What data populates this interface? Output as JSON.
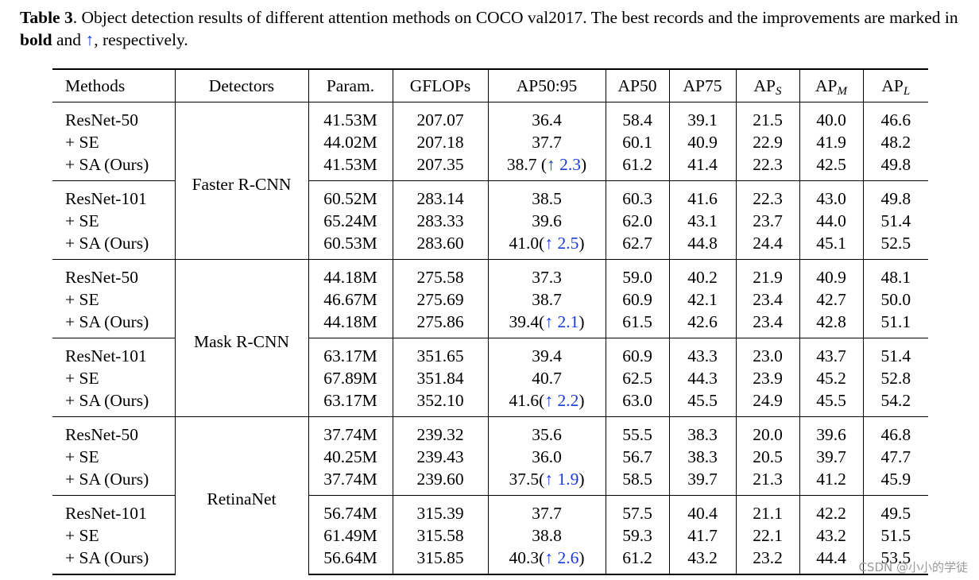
{
  "caption": {
    "label": "Table 3",
    "text_1": ". Object detection results of different attention methods on COCO val2017. The best records and the improvements are marked in ",
    "bold_word": "bold",
    "text_2": " and ",
    "arrow": "↑",
    "text_3": ", respectively."
  },
  "headers": {
    "methods": "Methods",
    "detectors": "Detectors",
    "param": "Param.",
    "gflops": "GFLOPs",
    "ap50_95": "AP50:95",
    "ap50": "AP50",
    "ap75": "AP75",
    "aps_base": "AP",
    "aps_sub": "S",
    "apm_base": "AP",
    "apm_sub": "M",
    "apl_base": "AP",
    "apl_sub": "L"
  },
  "detectors": [
    "Faster R-CNN",
    "Mask R-CNN",
    "RetinaNet"
  ],
  "rows": [
    {
      "method": "ResNet-50",
      "param": "41.53M",
      "gflops": "207.07",
      "ap": "36.4",
      "imp": "",
      "ap50": "58.4",
      "ap75": "39.1",
      "aps": "21.5",
      "apm": "40.0",
      "apl": "46.6"
    },
    {
      "method": "+ SE",
      "param": "44.02M",
      "gflops": "207.18",
      "ap": "37.7",
      "imp": "",
      "ap50": "60.1",
      "ap75": "40.9",
      "aps": "22.9",
      "apm": "41.9",
      "apl": "48.2"
    },
    {
      "method": "+ SA (Ours)",
      "param": "41.53M",
      "gflops": "207.35",
      "ap": "38.7",
      "imp": " (↑ 2.3)",
      "ap50": "61.2",
      "ap75": "41.4",
      "aps": "22.3",
      "apm": "42.5",
      "apl": "49.8"
    },
    {
      "method": "ResNet-101",
      "param": "60.52M",
      "gflops": "283.14",
      "ap": "38.5",
      "imp": "",
      "ap50": "60.3",
      "ap75": "41.6",
      "aps": "22.3",
      "apm": "43.0",
      "apl": "49.8"
    },
    {
      "method": "+ SE",
      "param": "65.24M",
      "gflops": "283.33",
      "ap": "39.6",
      "imp": "",
      "ap50": "62.0",
      "ap75": "43.1",
      "aps": "23.7",
      "apm": "44.0",
      "apl": "51.4"
    },
    {
      "method": "+ SA (Ours)",
      "param": "60.53M",
      "gflops": "283.60",
      "ap": "41.0",
      "imp": "(↑ 2.5)",
      "ap50": "62.7",
      "ap75": "44.8",
      "aps": "24.4",
      "apm": "45.1",
      "apl": "52.5"
    },
    {
      "method": "ResNet-50",
      "param": "44.18M",
      "gflops": "275.58",
      "ap": "37.3",
      "imp": "",
      "ap50": "59.0",
      "ap75": "40.2",
      "aps": "21.9",
      "apm": "40.9",
      "apl": "48.1"
    },
    {
      "method": "+ SE",
      "param": "46.67M",
      "gflops": "275.69",
      "ap": "38.7",
      "imp": "",
      "ap50": "60.9",
      "ap75": "42.1",
      "aps": "23.4",
      "apm": "42.7",
      "apl": "50.0"
    },
    {
      "method": "+ SA (Ours)",
      "param": "44.18M",
      "gflops": "275.86",
      "ap": "39.4",
      "imp": "(↑ 2.1)",
      "ap50": "61.5",
      "ap75": "42.6",
      "aps": "23.4",
      "apm": "42.8",
      "apl": "51.1"
    },
    {
      "method": "ResNet-101",
      "param": "63.17M",
      "gflops": "351.65",
      "ap": "39.4",
      "imp": "",
      "ap50": "60.9",
      "ap75": "43.3",
      "aps": "23.0",
      "apm": "43.7",
      "apl": "51.4"
    },
    {
      "method": "+ SE",
      "param": "67.89M",
      "gflops": "351.84",
      "ap": "40.7",
      "imp": "",
      "ap50": "62.5",
      "ap75": "44.3",
      "aps": "23.9",
      "apm": "45.2",
      "apl": "52.8"
    },
    {
      "method": "+ SA (Ours)",
      "param": "63.17M",
      "gflops": "352.10",
      "ap": "41.6",
      "imp": "(↑ 2.2)",
      "ap50": "63.0",
      "ap75": "45.5",
      "aps": "24.9",
      "apm": "45.5",
      "apl": "54.2"
    },
    {
      "method": "ResNet-50",
      "param": "37.74M",
      "gflops": "239.32",
      "ap": "35.6",
      "imp": "",
      "ap50": "55.5",
      "ap75": "38.3",
      "aps": "20.0",
      "apm": "39.6",
      "apl": "46.8"
    },
    {
      "method": "+ SE",
      "param": "40.25M",
      "gflops": "239.43",
      "ap": "36.0",
      "imp": "",
      "ap50": "56.7",
      "ap75": "38.3",
      "aps": "20.5",
      "apm": "39.7",
      "apl": "47.7"
    },
    {
      "method": "+ SA (Ours)",
      "param": "37.74M",
      "gflops": "239.60",
      "ap": "37.5",
      "imp": "(↑ 1.9)",
      "ap50": "58.5",
      "ap75": "39.7",
      "aps": "21.3",
      "apm": "41.2",
      "apl": "45.9"
    },
    {
      "method": "ResNet-101",
      "param": "56.74M",
      "gflops": "315.39",
      "ap": "37.7",
      "imp": "",
      "ap50": "57.5",
      "ap75": "40.4",
      "aps": "21.1",
      "apm": "42.2",
      "apl": "49.5"
    },
    {
      "method": "+ SE",
      "param": "61.49M",
      "gflops": "315.58",
      "ap": "38.8",
      "imp": "",
      "ap50": "59.3",
      "ap75": "41.7",
      "aps": "22.1",
      "apm": "43.2",
      "apl": "51.5"
    },
    {
      "method": "+ SA (Ours)",
      "param": "56.64M",
      "gflops": "315.85",
      "ap": "40.3",
      "imp": "(↑ 2.6)",
      "ap50": "61.2",
      "ap75": "43.2",
      "aps": "23.2",
      "apm": "44.4",
      "apl": "53.5"
    }
  ],
  "watermark": "CSDN @小小的学徒"
}
